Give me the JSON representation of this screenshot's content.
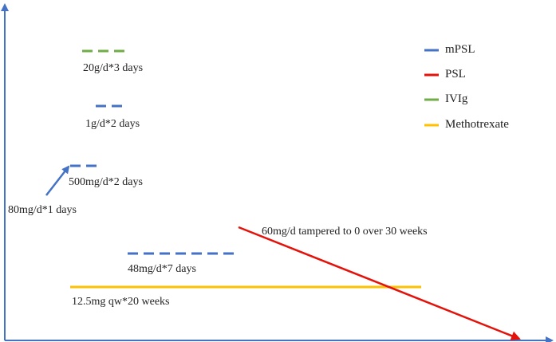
{
  "colors": {
    "mPSL": "#4472c4",
    "PSL": "#e3120b",
    "IVIg": "#70ad47",
    "Methotrexate": "#ffc000",
    "axis": "#4472c4"
  },
  "legend": [
    {
      "name": "mPSL",
      "color": "#4472c4"
    },
    {
      "name": "PSL",
      "color": "#e3120b"
    },
    {
      "name": "IVIg",
      "color": "#70ad47"
    },
    {
      "name": "Methotrexate",
      "color": "#ffc000"
    }
  ],
  "annotations": {
    "ivig_dose": "20g/d*3 days",
    "mpsl_1g": "1g/d*2 days",
    "mpsl_500mg": "500mg/d*2 days",
    "mpsl_80mg": "80mg/d*1 days",
    "mpsl_48mg": "48mg/d*7 days",
    "psl_taper": "60mg/d tampered to 0 over 30 weeks",
    "mtx_dose": "12.5mg qw*20 weeks"
  }
}
